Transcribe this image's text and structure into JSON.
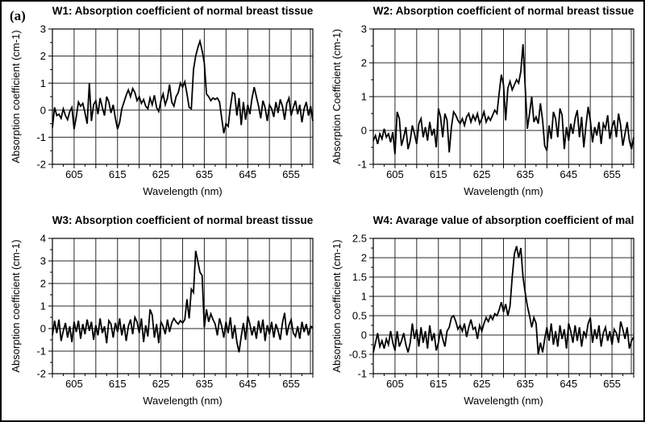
{
  "figure": {
    "panel_label": "(a)"
  },
  "colors": {
    "line": "#000000",
    "grid": "#2a2a2a",
    "border": "#000000",
    "background": "#ffffff",
    "text": "#000000"
  },
  "chart_data": [
    {
      "type": "line",
      "title": "W1: Absorption coefficient of normal breast tissue",
      "xlabel": "Wavelength (nm)",
      "ylabel": "Absorption coefficient (cm-1)",
      "xlim": [
        600,
        660
      ],
      "ylim": [
        -2,
        3
      ],
      "xticks": [
        605,
        615,
        625,
        635,
        645,
        655
      ],
      "xtick_labels": [
        "605",
        "615",
        "625",
        "635",
        "645",
        "655"
      ],
      "yticks": [
        -2,
        -1,
        0,
        1,
        2,
        3
      ],
      "ytick_labels": [
        "-2",
        "-1",
        "0",
        "1",
        "2",
        "3"
      ],
      "xgrid_step": 5,
      "grid": true,
      "legend": false,
      "x_start": 600,
      "x_step": 0.5,
      "values": [
        -0.65,
        0.1,
        -0.2,
        -0.15,
        -0.3,
        0.05,
        -0.2,
        -0.35,
        -0.05,
        0.1,
        -0.7,
        -0.25,
        0.3,
        0.15,
        0.25,
        -0.1,
        -0.5,
        1.0,
        -0.4,
        0.2,
        0.35,
        -0.15,
        0.45,
        0.1,
        -0.2,
        0.5,
        0.3,
        -0.1,
        0.2,
        -0.3,
        -0.7,
        -0.45,
        0.05,
        0.3,
        0.55,
        0.75,
        0.5,
        0.8,
        0.65,
        0.35,
        0.5,
        0.25,
        0.4,
        0.15,
        0.05,
        0.45,
        0.2,
        0.55,
        0.1,
        -0.05,
        0.35,
        0.6,
        0.2,
        0.45,
        0.95,
        0.3,
        0.15,
        0.5,
        0.65,
        1.0,
        0.85,
        1.05,
        0.6,
        0.1,
        0.05,
        1.5,
        2.0,
        2.3,
        2.55,
        2.2,
        1.75,
        0.6,
        0.5,
        0.35,
        0.45,
        0.4,
        0.45,
        0.3,
        -0.3,
        -0.85,
        -0.5,
        -0.6,
        0.1,
        0.65,
        0.6,
        -0.2,
        0.45,
        -0.55,
        0.3,
        -0.35,
        0.2,
        -0.15,
        0.45,
        0.85,
        0.5,
        0.15,
        -0.3,
        0.35,
        0.1,
        -0.4,
        0.2,
        0.05,
        -0.25,
        0.3,
        -0.1,
        0.4,
        0.15,
        -0.35,
        0.25,
        0.45,
        -0.2,
        0.1,
        0.35,
        -0.15,
        0.2,
        -0.45,
        0.05,
        0.3,
        -0.2,
        0.15,
        -0.4
      ]
    },
    {
      "type": "line",
      "title": "W2: Absorption coefficient of normal breast tissue",
      "xlabel": "Wavelength (nm)",
      "ylabel": "Absorption Coefficient (cm-1)",
      "xlim": [
        600,
        660
      ],
      "ylim": [
        -1,
        3
      ],
      "xticks": [
        605,
        615,
        625,
        635,
        645,
        655
      ],
      "xtick_labels": [
        "605",
        "615",
        "625",
        "635",
        "645",
        "655"
      ],
      "yticks": [
        -1,
        0,
        1,
        2,
        3
      ],
      "ytick_labels": [
        "-1",
        "0",
        "1",
        "2",
        "3"
      ],
      "xgrid_step": 5,
      "grid": true,
      "legend": false,
      "x_start": 600,
      "x_step": 0.5,
      "values": [
        -0.3,
        -0.15,
        -0.4,
        -0.1,
        -0.25,
        0.05,
        -0.2,
        -0.1,
        -0.35,
        -0.05,
        -0.7,
        0.55,
        0.35,
        -0.45,
        -0.2,
        0.1,
        -0.55,
        -0.3,
        0.15,
        -0.1,
        -0.4,
        0.2,
        0.35,
        -0.2,
        0.1,
        -0.3,
        0.25,
        -0.15,
        0.05,
        -0.5,
        0.65,
        0.4,
        -0.2,
        0.5,
        0.3,
        -0.65,
        0.1,
        0.55,
        0.45,
        0.3,
        0.2,
        0.35,
        0.15,
        0.4,
        0.5,
        0.25,
        0.45,
        0.3,
        0.5,
        0.2,
        0.35,
        0.55,
        0.25,
        0.4,
        0.3,
        0.45,
        0.6,
        0.5,
        1.1,
        1.65,
        1.35,
        0.3,
        1.25,
        1.45,
        1.2,
        1.35,
        1.5,
        1.4,
        1.75,
        2.55,
        1.3,
        0.05,
        0.5,
        1.0,
        0.25,
        0.4,
        0.2,
        0.8,
        0.3,
        -0.45,
        -0.6,
        0.15,
        -0.25,
        0.55,
        0.35,
        -0.2,
        0.65,
        0.45,
        -0.55,
        0.1,
        -0.3,
        0.2,
        -0.1,
        0.35,
        0.6,
        -0.2,
        0.4,
        -0.5,
        0.15,
        0.7,
        0.3,
        -0.35,
        0.1,
        -0.15,
        0.25,
        -0.4,
        0.2,
        0.05,
        0.45,
        -0.25,
        0.1,
        0.3,
        -0.2,
        0.5,
        0.15,
        -0.45,
        -0.1,
        0.25,
        -0.3,
        -0.55,
        -0.2
      ]
    },
    {
      "type": "line",
      "title": "W3: Absorption coefficient of normal breast tissue",
      "xlabel": "Wavelength (nm)",
      "ylabel": "Absorption coefficient (cm-1)",
      "xlim": [
        600,
        660
      ],
      "ylim": [
        -2,
        4
      ],
      "xticks": [
        605,
        615,
        625,
        635,
        645,
        655
      ],
      "xtick_labels": [
        "605",
        "615",
        "625",
        "635",
        "645",
        "655"
      ],
      "yticks": [
        -2,
        -1,
        0,
        1,
        2,
        3,
        4
      ],
      "ytick_labels": [
        "-2",
        "-1",
        "0",
        "1",
        "2",
        "3",
        "4"
      ],
      "xgrid_step": 5,
      "grid": true,
      "legend": false,
      "x_start": 600,
      "x_step": 0.5,
      "values": [
        -0.3,
        0.35,
        -0.2,
        0.4,
        -0.55,
        -0.1,
        0.25,
        -0.4,
        0.1,
        -0.6,
        0.3,
        -0.15,
        0.35,
        -0.45,
        0.2,
        -0.25,
        0.4,
        -0.1,
        0.3,
        -0.5,
        0.15,
        -0.3,
        0.45,
        -0.2,
        0.1,
        -0.65,
        0.35,
        0.2,
        -0.4,
        0.25,
        -0.15,
        0.45,
        -0.3,
        0.2,
        -0.55,
        0.1,
        0.4,
        -0.25,
        0.5,
        0.3,
        -0.2,
        0.45,
        -0.6,
        0.15,
        -0.35,
        0.85,
        0.6,
        -0.4,
        0.2,
        -0.65,
        0.3,
        0.1,
        -0.25,
        0.4,
        -0.15,
        0.25,
        0.45,
        0.3,
        0.2,
        0.35,
        0.25,
        0.4,
        1.3,
        0.45,
        1.75,
        1.6,
        3.45,
        3.0,
        2.5,
        2.35,
        0.05,
        0.85,
        0.3,
        0.65,
        0.4,
        0.2,
        -0.3,
        0.45,
        0.1,
        -0.4,
        0.3,
        -0.2,
        0.5,
        -0.45,
        0.15,
        -0.6,
        -1.05,
        -0.35,
        0.25,
        -0.5,
        0.55,
        0.2,
        -0.3,
        0.1,
        -0.45,
        0.35,
        -0.2,
        0.4,
        -0.55,
        0.15,
        -0.25,
        0.3,
        -0.4,
        0.2,
        -0.1,
        -0.5,
        0.25,
        0.7,
        -0.3,
        0.15,
        0.4,
        -0.2,
        -0.35,
        0.1,
        -0.45,
        0.3,
        -0.15,
        0.2,
        -0.3,
        0.1,
        0.05
      ]
    },
    {
      "type": "line",
      "title": "W4: Avarage value of absorption coefficient of mal",
      "xlabel": "Wavelength (nm)",
      "ylabel": "Absorption coefficient (cm-1)",
      "xlim": [
        600,
        660
      ],
      "ylim": [
        -1,
        2.5
      ],
      "xticks": [
        605,
        615,
        625,
        635,
        645,
        655
      ],
      "xtick_labels": [
        "605",
        "615",
        "625",
        "635",
        "645",
        "655"
      ],
      "yticks": [
        -1,
        -0.5,
        0,
        0.5,
        1,
        1.5,
        2,
        2.5
      ],
      "ytick_labels": [
        "-1",
        "-0.5",
        "0",
        "0.5",
        "1",
        "1.5",
        "2",
        "2.5"
      ],
      "xgrid_step": 5,
      "grid": true,
      "legend": false,
      "x_start": 600,
      "x_step": 0.5,
      "values": [
        -0.45,
        -0.2,
        0.05,
        -0.3,
        -0.15,
        -0.35,
        -0.1,
        -0.25,
        0.1,
        -0.2,
        -0.4,
        0.1,
        -0.3,
        -0.15,
        0.05,
        -0.25,
        -0.45,
        -0.2,
        0.3,
        -0.1,
        0.15,
        -0.3,
        0.2,
        -0.2,
        0.1,
        -0.35,
        0.25,
        -0.15,
        0.05,
        -0.4,
        -0.2,
        0.15,
        -0.1,
        -0.3,
        0.1,
        0.2,
        0.45,
        0.5,
        0.35,
        0.15,
        0.25,
        0.1,
        0.3,
        -0.05,
        0.2,
        0.4,
        0.15,
        0.2,
        -0.1,
        0.25,
        0.1,
        0.3,
        0.45,
        0.35,
        0.5,
        0.4,
        0.55,
        0.5,
        0.65,
        0.85,
        0.6,
        0.8,
        0.5,
        0.75,
        1.5,
        2.1,
        2.3,
        2.0,
        2.25,
        1.5,
        1.1,
        0.75,
        0.5,
        0.2,
        0.45,
        0.3,
        -0.5,
        -0.2,
        -0.45,
        -0.1,
        0.2,
        -0.15,
        0.3,
        -0.25,
        0.1,
        -0.3,
        0.25,
        -0.1,
        0.15,
        -0.35,
        0.3,
        0.1,
        -0.2,
        0.25,
        -0.15,
        0.2,
        -0.3,
        0.1,
        -0.05,
        0.3,
        0.45,
        -0.2,
        0.15,
        -0.1,
        0.25,
        -0.3,
        0.05,
        0.2,
        -0.15,
        0.1,
        -0.25,
        0.15,
        0.05,
        -0.2,
        0.35,
        0.15,
        -0.1,
        0.2,
        -0.35,
        -0.15,
        -0.05
      ]
    }
  ]
}
